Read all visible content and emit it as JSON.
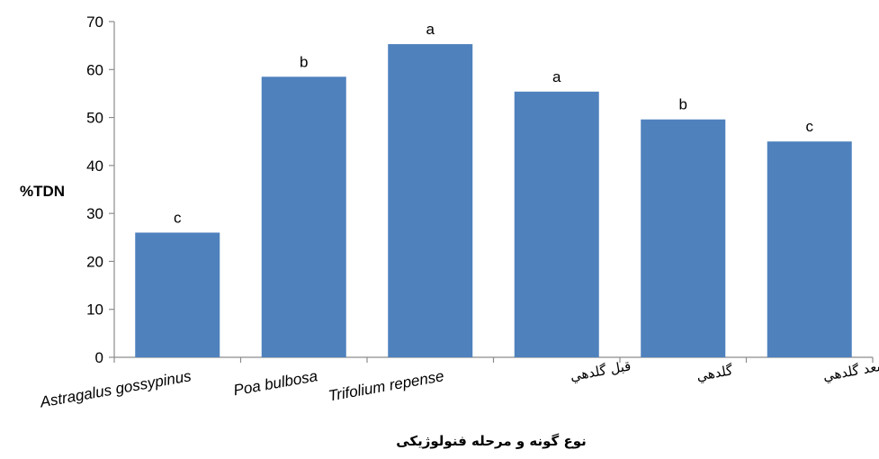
{
  "chart_data": {
    "type": "bar",
    "title": "",
    "ylabel": "%TDN",
    "xlabel": "نوع گونه و مرحله فنولوژیکی",
    "ylim": [
      0,
      70
    ],
    "yticks": [
      0,
      10,
      20,
      30,
      40,
      50,
      60,
      70
    ],
    "grid": false,
    "legend": "none",
    "bar_color": "#4F81BD",
    "categories": [
      "Astragalus gossypinus",
      "Poa bulbosa",
      "Trifolium repense",
      "قبل گلدهي",
      "گلدهي",
      "بعد گلدهي"
    ],
    "values": [
      26,
      58.5,
      65.3,
      55.4,
      49.6,
      45
    ],
    "letters": [
      "c",
      "b",
      "a",
      "a",
      "b",
      "c"
    ]
  }
}
